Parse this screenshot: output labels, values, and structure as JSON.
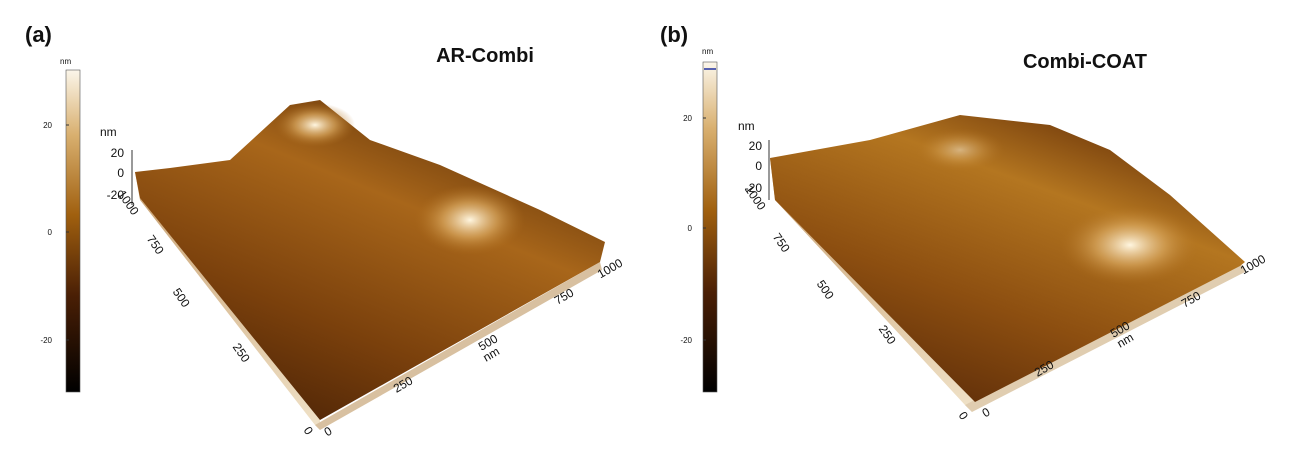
{
  "panels": [
    {
      "label": "(a)",
      "title": "AR-Combi",
      "colorbar": {
        "unit": "nm",
        "ticks": [
          "20",
          "0",
          "-20"
        ]
      },
      "axes": {
        "z_unit": "nm",
        "z_ticks": [
          "20",
          "0",
          "-20"
        ],
        "y_ticks": [
          "1000",
          "750",
          "500",
          "250",
          "0"
        ],
        "x_ticks": [
          "0",
          "250",
          "500",
          "750",
          "1000"
        ],
        "x_unit": "nm"
      }
    },
    {
      "label": "(b)",
      "title": "Combi-COAT",
      "colorbar": {
        "unit": "nm",
        "ticks": [
          "20",
          "0",
          "-20"
        ]
      },
      "axes": {
        "z_unit": "nm",
        "z_ticks": [
          "20",
          "0",
          "-20"
        ],
        "y_ticks": [
          "1000",
          "750",
          "500",
          "250",
          "0"
        ],
        "x_ticks": [
          "0",
          "250",
          "500",
          "750",
          "1000"
        ],
        "x_unit": "nm"
      }
    }
  ]
}
